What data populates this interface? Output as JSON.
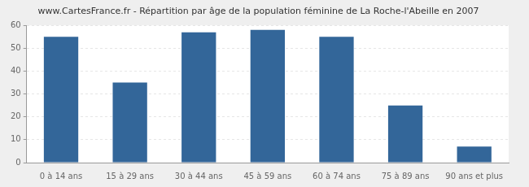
{
  "chart_data": {
    "type": "bar",
    "title": "www.CartesFrance.fr - Répartition par âge de la population féminine de La Roche-l'Abeille en 2007",
    "categories": [
      "0 à 14 ans",
      "15 à 29 ans",
      "30 à 44 ans",
      "45 à 59 ans",
      "60 à 74 ans",
      "75 à 89 ans",
      "90 ans et plus"
    ],
    "values": [
      55,
      35,
      57,
      58,
      55,
      25,
      7
    ],
    "color": "#336699",
    "ylim": [
      0,
      60
    ],
    "yticks": [
      0,
      10,
      20,
      30,
      40,
      50,
      60
    ],
    "grid": true
  }
}
